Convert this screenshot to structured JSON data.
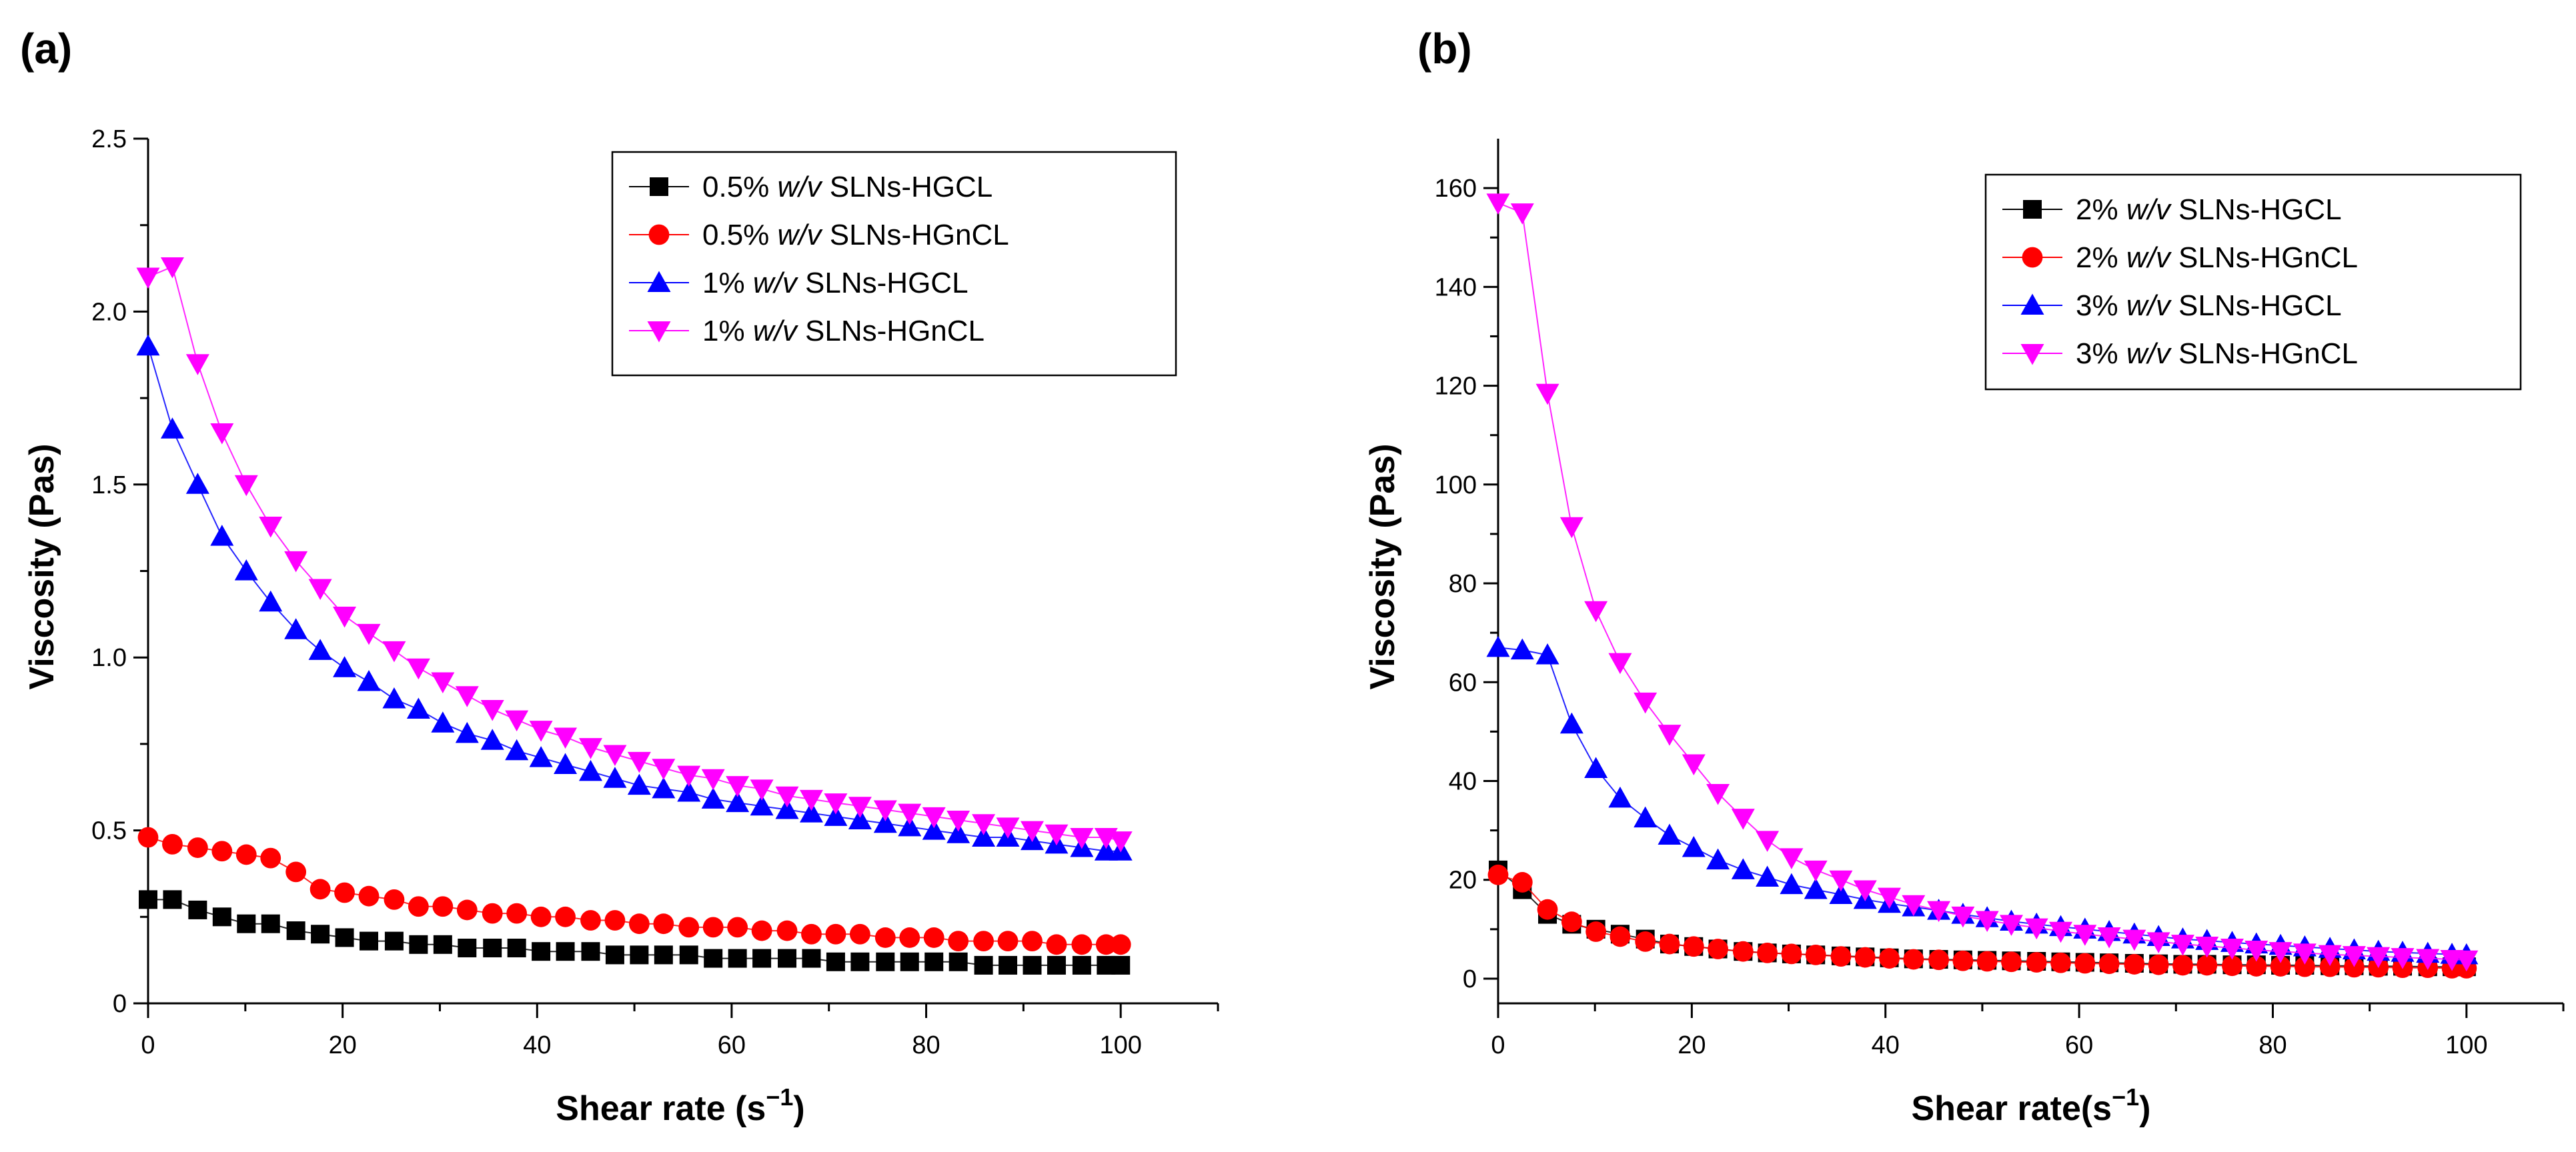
{
  "chart_data": [
    {
      "panel": "(a)",
      "type": "scatter",
      "xlabel": "Shear rate (s",
      "xlabel_sup": "−1",
      "xlabel_end": ")",
      "ylabel": "Viscosity (Pas)",
      "xlim": [
        0,
        110
      ],
      "ylim": [
        0,
        2.5
      ],
      "xticks": [
        0,
        20,
        40,
        60,
        80,
        100
      ],
      "yticks": [
        0,
        0.5,
        1.0,
        1.5,
        2.0,
        2.5
      ],
      "ytick_labels": [
        "0",
        "0.5",
        "1.0",
        "1.5",
        "2.0",
        "2.5"
      ],
      "legend_position": "top-right",
      "series": [
        {
          "name_pre": "0.5% ",
          "name_em": "w/v",
          "name_post": " SLNs-HGCL",
          "color": "#000000",
          "marker": "square",
          "x": [
            0,
            2.5,
            5.1,
            7.6,
            10.1,
            12.6,
            15.2,
            17.7,
            20.2,
            22.7,
            25.3,
            27.8,
            30.3,
            32.8,
            35.4,
            37.9,
            40.4,
            42.9,
            45.5,
            48.0,
            50.5,
            53.0,
            55.6,
            58.1,
            60.6,
            63.1,
            65.7,
            68.2,
            70.7,
            73.2,
            75.8,
            78.3,
            80.8,
            83.3,
            85.9,
            88.4,
            90.9,
            93.4,
            96.0,
            98.5,
            100.0
          ],
          "y": [
            0.3,
            0.3,
            0.27,
            0.25,
            0.23,
            0.23,
            0.21,
            0.2,
            0.19,
            0.18,
            0.18,
            0.17,
            0.17,
            0.16,
            0.16,
            0.16,
            0.15,
            0.15,
            0.15,
            0.14,
            0.14,
            0.14,
            0.14,
            0.13,
            0.13,
            0.13,
            0.13,
            0.13,
            0.12,
            0.12,
            0.12,
            0.12,
            0.12,
            0.12,
            0.11,
            0.11,
            0.11,
            0.11,
            0.11,
            0.11,
            0.11
          ]
        },
        {
          "name_pre": "0.5% ",
          "name_em": "w/v",
          "name_post": " SLNs-HGnCL",
          "color": "#ff0000",
          "marker": "circle",
          "x": [
            0,
            2.5,
            5.1,
            7.6,
            10.1,
            12.6,
            15.2,
            17.7,
            20.2,
            22.7,
            25.3,
            27.8,
            30.3,
            32.8,
            35.4,
            37.9,
            40.4,
            42.9,
            45.5,
            48.0,
            50.5,
            53.0,
            55.6,
            58.1,
            60.6,
            63.1,
            65.7,
            68.2,
            70.7,
            73.2,
            75.8,
            78.3,
            80.8,
            83.3,
            85.9,
            88.4,
            90.9,
            93.4,
            96.0,
            98.5,
            100.0
          ],
          "y": [
            0.48,
            0.46,
            0.45,
            0.44,
            0.43,
            0.42,
            0.38,
            0.33,
            0.32,
            0.31,
            0.3,
            0.28,
            0.28,
            0.27,
            0.26,
            0.26,
            0.25,
            0.25,
            0.24,
            0.24,
            0.23,
            0.23,
            0.22,
            0.22,
            0.22,
            0.21,
            0.21,
            0.2,
            0.2,
            0.2,
            0.19,
            0.19,
            0.19,
            0.18,
            0.18,
            0.18,
            0.18,
            0.17,
            0.17,
            0.17,
            0.17
          ]
        },
        {
          "name_pre": "1% ",
          "name_em": "w/v",
          "name_post": " SLNs-HGCL",
          "color": "#0000ff",
          "marker": "triangle-up",
          "x": [
            0,
            2.5,
            5.1,
            7.6,
            10.1,
            12.6,
            15.2,
            17.7,
            20.2,
            22.7,
            25.3,
            27.8,
            30.3,
            32.8,
            35.4,
            37.9,
            40.4,
            42.9,
            45.5,
            48.0,
            50.5,
            53.0,
            55.6,
            58.1,
            60.6,
            63.1,
            65.7,
            68.2,
            70.7,
            73.2,
            75.8,
            78.3,
            80.8,
            83.3,
            85.9,
            88.4,
            90.9,
            93.4,
            96.0,
            98.5,
            100.0
          ],
          "y": [
            1.9,
            1.66,
            1.5,
            1.35,
            1.25,
            1.16,
            1.08,
            1.02,
            0.97,
            0.93,
            0.88,
            0.85,
            0.81,
            0.78,
            0.76,
            0.73,
            0.71,
            0.69,
            0.67,
            0.65,
            0.63,
            0.62,
            0.61,
            0.59,
            0.58,
            0.57,
            0.56,
            0.55,
            0.54,
            0.53,
            0.52,
            0.51,
            0.5,
            0.49,
            0.48,
            0.48,
            0.47,
            0.46,
            0.45,
            0.44,
            0.44
          ]
        },
        {
          "name_pre": "1% ",
          "name_em": "w/v",
          "name_post": " SLNs-HGnCL",
          "color": "#ff00ff",
          "marker": "triangle-down",
          "x": [
            0,
            2.5,
            5.1,
            7.6,
            10.1,
            12.6,
            15.2,
            17.7,
            20.2,
            22.7,
            25.3,
            27.8,
            30.3,
            32.8,
            35.4,
            37.9,
            40.4,
            42.9,
            45.5,
            48.0,
            50.5,
            53.0,
            55.6,
            58.1,
            60.6,
            63.1,
            65.7,
            68.2,
            70.7,
            73.2,
            75.8,
            78.3,
            80.8,
            83.3,
            85.9,
            88.4,
            90.9,
            93.4,
            96.0,
            98.5,
            100.0
          ],
          "y": [
            2.1,
            2.13,
            1.85,
            1.65,
            1.5,
            1.38,
            1.28,
            1.2,
            1.12,
            1.07,
            1.02,
            0.97,
            0.93,
            0.89,
            0.85,
            0.82,
            0.79,
            0.77,
            0.74,
            0.72,
            0.7,
            0.68,
            0.66,
            0.65,
            0.63,
            0.62,
            0.6,
            0.59,
            0.58,
            0.57,
            0.56,
            0.55,
            0.54,
            0.53,
            0.52,
            0.51,
            0.5,
            0.49,
            0.48,
            0.48,
            0.47
          ]
        }
      ]
    },
    {
      "panel": "(b)",
      "type": "scatter",
      "xlabel": "Shear rate(s",
      "xlabel_sup": "−1",
      "xlabel_end": ")",
      "ylabel": "Viscosity (Pas)",
      "xlim": [
        0,
        110
      ],
      "ylim": [
        -5,
        170
      ],
      "xticks": [
        0,
        20,
        40,
        60,
        80,
        100
      ],
      "yticks": [
        0,
        20,
        40,
        60,
        80,
        100,
        120,
        140,
        160
      ],
      "ytick_labels": [
        "0",
        "20",
        "40",
        "60",
        "80",
        "100",
        "120",
        "140",
        "160"
      ],
      "legend_position": "top-right",
      "series": [
        {
          "name_pre": "2% ",
          "name_em": "w/v",
          "name_post": " SLNs-HGCL",
          "color": "#000000",
          "marker": "square",
          "x": [
            0,
            2.5,
            5.1,
            7.6,
            10.1,
            12.6,
            15.2,
            17.7,
            20.2,
            22.7,
            25.3,
            27.8,
            30.3,
            32.8,
            35.4,
            37.9,
            40.4,
            42.9,
            45.5,
            48.0,
            50.5,
            53.0,
            55.6,
            58.1,
            60.6,
            63.1,
            65.7,
            68.2,
            70.7,
            73.2,
            75.8,
            78.3,
            80.8,
            83.3,
            85.9,
            88.4,
            90.9,
            93.4,
            96.0,
            98.5,
            100.0
          ],
          "y": [
            22,
            18,
            13,
            11,
            10,
            9,
            8,
            7,
            6.5,
            6,
            5.5,
            5.2,
            5,
            4.8,
            4.6,
            4.4,
            4.2,
            4.0,
            3.9,
            3.8,
            3.7,
            3.6,
            3.5,
            3.4,
            3.3,
            3.2,
            3.1,
            3.0,
            2.9,
            2.9,
            2.8,
            2.8,
            2.7,
            2.7,
            2.6,
            2.6,
            2.5,
            2.5,
            2.4,
            2.4,
            2.4
          ]
        },
        {
          "name_pre": "2% ",
          "name_em": "w/v",
          "name_post": " SLNs-HGnCL",
          "color": "#ff0000",
          "marker": "circle",
          "x": [
            0,
            2.5,
            5.1,
            7.6,
            10.1,
            12.6,
            15.2,
            17.7,
            20.2,
            22.7,
            25.3,
            27.8,
            30.3,
            32.8,
            35.4,
            37.9,
            40.4,
            42.9,
            45.5,
            48.0,
            50.5,
            53.0,
            55.6,
            58.1,
            60.6,
            63.1,
            65.7,
            68.2,
            70.7,
            73.2,
            75.8,
            78.3,
            80.8,
            83.3,
            85.9,
            88.4,
            90.9,
            93.4,
            96.0,
            98.5,
            100.0
          ],
          "y": [
            21,
            19.5,
            14,
            11.5,
            9.5,
            8.5,
            7.5,
            7,
            6.5,
            6,
            5.5,
            5.2,
            5,
            4.8,
            4.5,
            4.3,
            4.1,
            3.9,
            3.8,
            3.6,
            3.5,
            3.4,
            3.3,
            3.2,
            3.1,
            3.0,
            2.9,
            2.8,
            2.7,
            2.7,
            2.6,
            2.5,
            2.5,
            2.4,
            2.4,
            2.3,
            2.3,
            2.2,
            2.2,
            2.1,
            2.1
          ]
        },
        {
          "name_pre": "3% ",
          "name_em": "w/v",
          "name_post": " SLNs-HGCL",
          "color": "#0000ff",
          "marker": "triangle-up",
          "x": [
            0,
            2.5,
            5.1,
            7.6,
            10.1,
            12.6,
            15.2,
            17.7,
            20.2,
            22.7,
            25.3,
            27.8,
            30.3,
            32.8,
            35.4,
            37.9,
            40.4,
            42.9,
            45.5,
            48.0,
            50.5,
            53.0,
            55.6,
            58.1,
            60.6,
            63.1,
            65.7,
            68.2,
            70.7,
            73.2,
            75.8,
            78.3,
            80.8,
            83.3,
            85.9,
            88.4,
            90.9,
            93.4,
            96.0,
            98.5,
            100.0
          ],
          "y": [
            67,
            66.5,
            65.5,
            51.5,
            42.5,
            36.5,
            32.5,
            29,
            26.5,
            24,
            22,
            20.5,
            19,
            18,
            17,
            16,
            15.2,
            14.5,
            13.8,
            13,
            12.3,
            11.6,
            11,
            10.5,
            10,
            9.5,
            9,
            8.5,
            8,
            7.7,
            7.3,
            7,
            6.7,
            6.4,
            6.1,
            5.8,
            5.5,
            5.3,
            5.1,
            4.9,
            4.8
          ]
        },
        {
          "name_pre": "3% ",
          "name_em": "w/v",
          "name_post": " SLNs-HGnCL",
          "color": "#ff00ff",
          "marker": "triangle-down",
          "x": [
            0,
            2.5,
            5.1,
            7.6,
            10.1,
            12.6,
            15.2,
            17.7,
            20.2,
            22.7,
            25.3,
            27.8,
            30.3,
            32.8,
            35.4,
            37.9,
            40.4,
            42.9,
            45.5,
            48.0,
            50.5,
            53.0,
            55.6,
            58.1,
            60.6,
            63.1,
            65.7,
            68.2,
            70.7,
            73.2,
            75.8,
            78.3,
            80.8,
            83.3,
            85.9,
            88.4,
            90.9,
            93.4,
            96.0,
            98.5,
            100.0
          ],
          "y": [
            157,
            155,
            118.5,
            91.5,
            74.5,
            64,
            56,
            49.5,
            43.5,
            37.5,
            32.5,
            28,
            24.5,
            22,
            20,
            18,
            16.5,
            15,
            13.8,
            12.7,
            11.8,
            11,
            10.3,
            9.6,
            9,
            8.5,
            8,
            7.5,
            7,
            6.6,
            6.2,
            5.8,
            5.5,
            5.2,
            4.9,
            4.7,
            4.5,
            4.3,
            4.1,
            3.9,
            3.8
          ]
        }
      ]
    }
  ]
}
